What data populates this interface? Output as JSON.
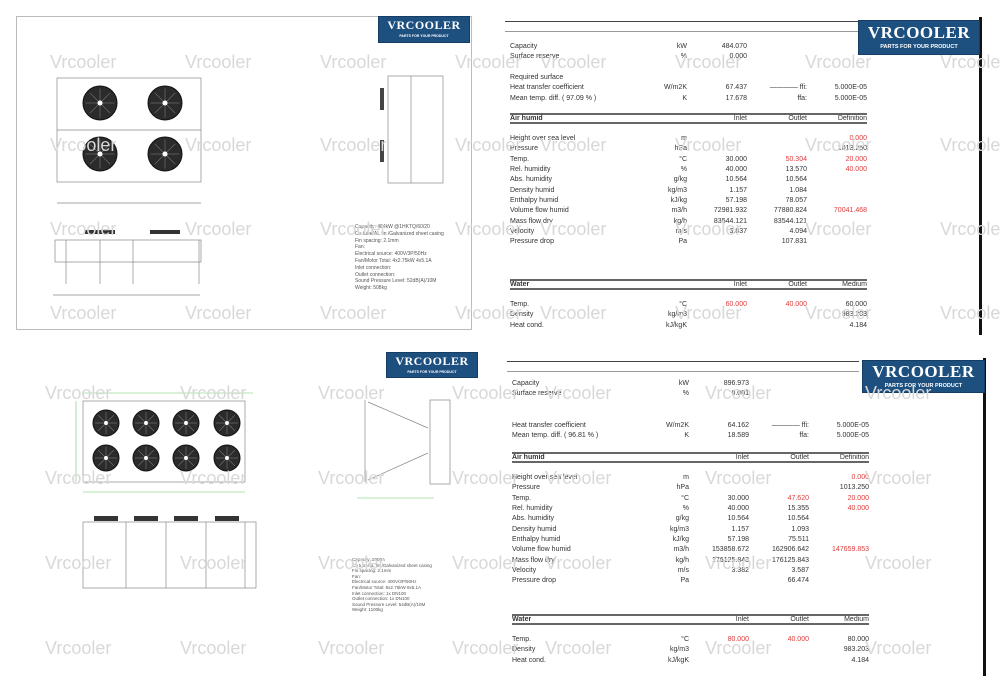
{
  "watermark": "Vrcooler",
  "logo": {
    "brand": "VRCOOLER",
    "tagline": "PARTS FOR YOUR PRODUCT",
    "color": "#1d4f7f"
  },
  "drawings": [
    {
      "fan_count": 4,
      "spec_lines": [
        "Capacity: 484kW @1HKTQ/60/20",
        "Cu tube/AL fin /Galvanized sheet casing",
        "Fin spacing: 2.1mm",
        "Fan:",
        "Electrical source: 400V/3P/50Hz",
        "Fan/Motor Total: 4x2.75kW 4x5.1A",
        "Inlet connection:",
        "Outlet connection:",
        "Sound Pressure Level: 52dB(A)/10M",
        "Weight: 508kg"
      ]
    },
    {
      "fan_count": 8,
      "spec_lines": [
        "Capacity: 2000A",
        "Cu tube/AL fin /Galvanized sheet casing",
        "Fin spacing: 2.1mm",
        "Fan:",
        "Electrical source: 400V/3P/50Hz",
        "Fan/Motor Total: 8x2.75kW 8x5.1A",
        "Inlet connection: 1x DN100",
        "Outlet connection: 1x DN100",
        "Sound Pressure Level: 54dB(A)/10M",
        "Weight: 1100kg"
      ]
    }
  ],
  "sheets": [
    {
      "summary1": [
        {
          "label": "Capacity",
          "unit": "kW",
          "inlet": "484.070"
        },
        {
          "label": "Surface reserve",
          "unit": "%",
          "inlet": "0.000"
        }
      ],
      "summary2": [
        {
          "label": "Required surface"
        },
        {
          "label": "Heat transfer coefficient",
          "unit": "W/m2K",
          "inlet": "67.437",
          "outlet": "———— ffi:",
          "def": "5.000E-05"
        },
        {
          "label": "Mean temp. diff. ( 97.09 % )",
          "unit": "K",
          "inlet": "17.678",
          "outlet": "ffa:",
          "def": "5.000E-05"
        }
      ],
      "air_header": {
        "label": "Air humid",
        "inlet": "Inlet",
        "outlet": "Outlet",
        "def": "Definition"
      },
      "air": [
        {
          "label": "Height over sea level",
          "unit": "m",
          "def": "0.000",
          "red": [
            "def"
          ]
        },
        {
          "label": "Pressure",
          "unit": "hPa",
          "def": "1013.250"
        },
        {
          "label": "Temp.",
          "unit": "°C",
          "inlet": "30.000",
          "outlet": "50.304",
          "def": "20.000",
          "red": [
            "outlet",
            "def"
          ]
        },
        {
          "label": "Rel. humidity",
          "unit": "%",
          "inlet": "40.000",
          "outlet": "13.570",
          "def": "40.000",
          "red": [
            "def"
          ]
        },
        {
          "label": "Abs. humidity",
          "unit": "g/kg",
          "inlet": "10.564",
          "outlet": "10.564"
        },
        {
          "label": "Density humid",
          "unit": "kg/m3",
          "inlet": "1.157",
          "outlet": "1.084"
        },
        {
          "label": "Enthalpy humid",
          "unit": "kJ/kg",
          "inlet": "57.198",
          "outlet": "78.057"
        },
        {
          "label": "Volume flow humid",
          "unit": "m3/h",
          "inlet": "72981.932",
          "outlet": "77880.824",
          "def": "70041.468",
          "red": [
            "def"
          ]
        },
        {
          "label": "Mass flow dry",
          "unit": "kg/h",
          "inlet": "83544.121",
          "outlet": "83544.121"
        },
        {
          "label": "Velocity",
          "unit": "m/s",
          "inlet": "3.837",
          "outlet": "4.094"
        },
        {
          "label": "Pressure drop",
          "unit": "Pa",
          "outlet": "107.831"
        }
      ],
      "water_header": {
        "label": "Water",
        "inlet": "Inlet",
        "outlet": "Outlet",
        "def": "Medium"
      },
      "water": [
        {
          "label": "Temp.",
          "unit": "°C",
          "inlet": "60.000",
          "outlet": "40.000",
          "def": "60.000",
          "red": [
            "inlet",
            "outlet"
          ]
        },
        {
          "label": "Density",
          "unit": "kg/m3",
          "def": "983.203"
        },
        {
          "label": "Heat cond.",
          "unit": "kJ/kgK",
          "def": "4.184"
        }
      ]
    },
    {
      "summary1": [
        {
          "label": "Capacity",
          "unit": "kW",
          "inlet": "896.973"
        },
        {
          "label": "Surface reserve",
          "unit": "%",
          "inlet": "0.001"
        }
      ],
      "summary2": [
        {
          "label": "Heat transfer coefficient",
          "unit": "W/m2K",
          "inlet": "64.162",
          "outlet": "———— ffi:",
          "def": "5.000E-05"
        },
        {
          "label": "Mean temp. diff. ( 96.81 % )",
          "unit": "K",
          "inlet": "18.589",
          "outlet": "ffa:",
          "def": "5.000E-05"
        }
      ],
      "air_header": {
        "label": "Air humid",
        "inlet": "Inlet",
        "outlet": "Outlet",
        "def": "Definition"
      },
      "air": [
        {
          "label": "Height over sea level",
          "unit": "m",
          "def": "0.000",
          "red": [
            "def"
          ]
        },
        {
          "label": "Pressure",
          "unit": "hPa",
          "def": "1013.250"
        },
        {
          "label": "Temp.",
          "unit": "°C",
          "inlet": "30.000",
          "outlet": "47.620",
          "def": "20.000",
          "red": [
            "outlet",
            "def"
          ]
        },
        {
          "label": "Rel. humidity",
          "unit": "%",
          "inlet": "40.000",
          "outlet": "15.355",
          "def": "40.000",
          "red": [
            "def"
          ]
        },
        {
          "label": "Abs. humidity",
          "unit": "g/kg",
          "inlet": "10.564",
          "outlet": "10.564"
        },
        {
          "label": "Density humid",
          "unit": "kg/m3",
          "inlet": "1.157",
          "outlet": "1.093"
        },
        {
          "label": "Enthalpy humid",
          "unit": "kJ/kg",
          "inlet": "57.198",
          "outlet": "75.511"
        },
        {
          "label": "Volume flow humid",
          "unit": "m3/h",
          "inlet": "153858.672",
          "outlet": "162906.642",
          "def": "147659.853",
          "red": [
            "def"
          ]
        },
        {
          "label": "Mass flow dry",
          "unit": "kg/h",
          "inlet": "176125.843",
          "outlet": "176125.843"
        },
        {
          "label": "Velocity",
          "unit": "m/s",
          "inlet": "3.382",
          "outlet": "3.587"
        },
        {
          "label": "Pressure drop",
          "unit": "Pa",
          "outlet": "66.474"
        }
      ],
      "water_header": {
        "label": "Water",
        "inlet": "Inlet",
        "outlet": "Outlet",
        "def": "Medium"
      },
      "water": [
        {
          "label": "Temp.",
          "unit": "°C",
          "inlet": "80.000",
          "outlet": "40.000",
          "def": "80.000",
          "red": [
            "inlet",
            "outlet"
          ]
        },
        {
          "label": "Density",
          "unit": "kg/m3",
          "def": "983.203"
        },
        {
          "label": "Heat cond.",
          "unit": "kJ/kgK",
          "def": "4.184"
        }
      ]
    }
  ]
}
